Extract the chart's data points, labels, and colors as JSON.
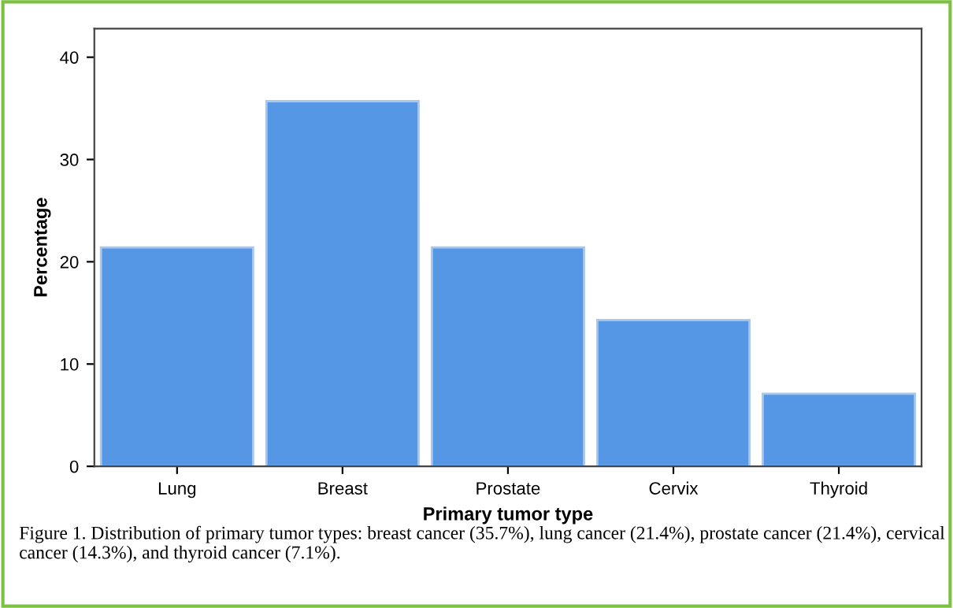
{
  "chart_data": {
    "type": "bar",
    "xlabel": "Primary tumor type",
    "ylabel": "Percentage",
    "categories": [
      "Lung",
      "Breast",
      "Prostate",
      "Cervix",
      "Thyroid"
    ],
    "values": [
      21.4,
      35.7,
      21.4,
      14.3,
      7.1
    ],
    "color": "#5597e4",
    "ylim": [
      0,
      42.8
    ],
    "yticks": [
      0,
      10,
      20,
      30,
      40
    ],
    "grid": false,
    "annotations": [
      "Figure 1. Distribution of primary tumor types: breast cancer (35.7%), lung cancer (21.4%), prostate cancer (21.4%), cervical cancer (14.3%), and thyroid cancer (7.1%)."
    ]
  }
}
